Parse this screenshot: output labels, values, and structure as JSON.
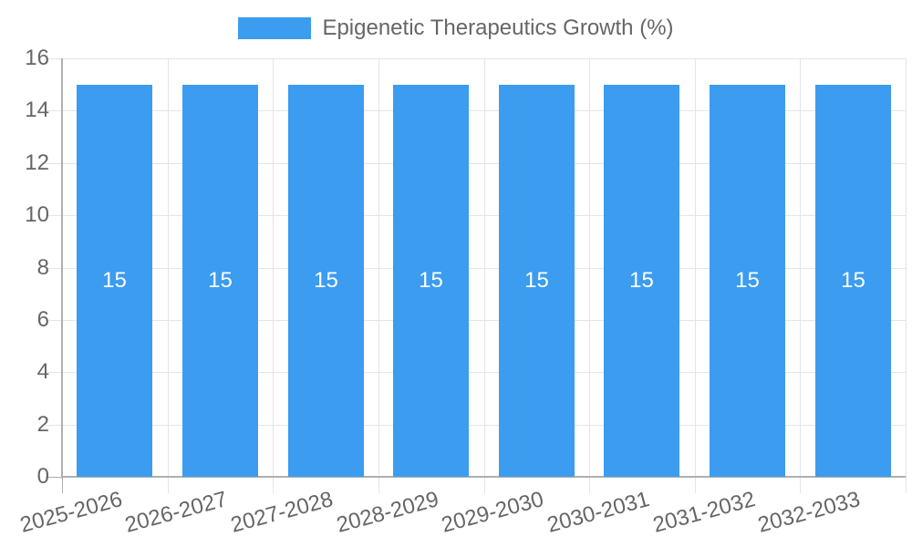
{
  "chart_data": {
    "type": "bar",
    "title": "",
    "legend": {
      "position": "top",
      "label": "Epigenetic Therapeutics Growth (%)"
    },
    "categories": [
      "2025-2026",
      "2026-2027",
      "2027-2028",
      "2028-2029",
      "2029-2030",
      "2030-2031",
      "2031-2032",
      "2032-2033"
    ],
    "series": [
      {
        "name": "Epigenetic Therapeutics Growth (%)",
        "values": [
          15,
          15,
          15,
          15,
          15,
          15,
          15,
          15
        ]
      }
    ],
    "value_labels": [
      "15",
      "15",
      "15",
      "15",
      "15",
      "15",
      "15",
      "15"
    ],
    "xlabel": "",
    "ylabel": "",
    "ylim": [
      0,
      16
    ],
    "yticks": [
      0,
      2,
      4,
      6,
      8,
      10,
      12,
      14,
      16
    ],
    "grid": true,
    "colors": {
      "bar": "#3B9CF0",
      "text": "#666666",
      "gridline": "#E5E5E5",
      "axis": "#B0B0B0",
      "value_label": "#FFFFFF",
      "background": "#FFFFFF"
    }
  }
}
